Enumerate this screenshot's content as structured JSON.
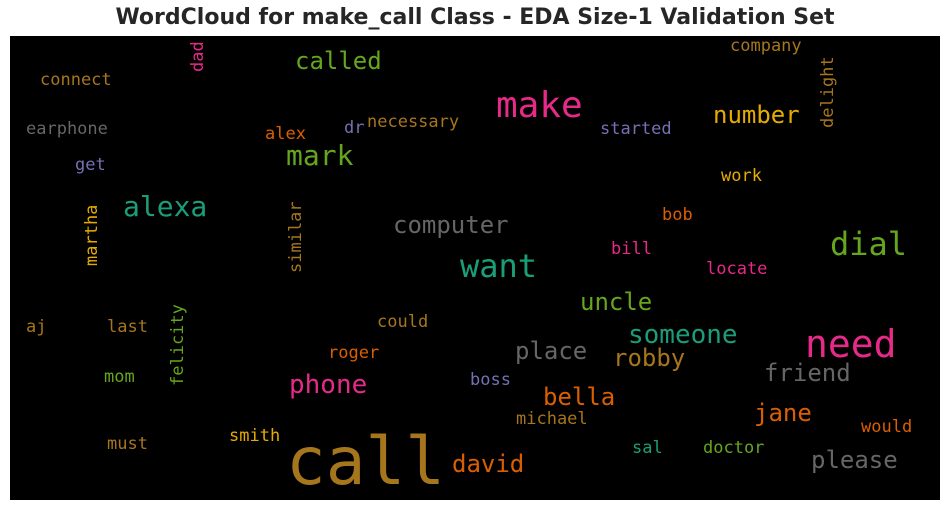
{
  "title": "WordCloud for make_call Class - EDA Size-1 Validation Set",
  "chart_data": {
    "type": "wordcloud",
    "title": "WordCloud for make_call Class - EDA Size-1 Validation Set",
    "background": "#000000",
    "colormap": "Dark2",
    "words": [
      {
        "text": "call",
        "color": "#a6761d"
      },
      {
        "text": "need",
        "color": "#e7298a"
      },
      {
        "text": "make",
        "color": "#e7298a"
      },
      {
        "text": "want",
        "color": "#1b9e77"
      },
      {
        "text": "dial",
        "color": "#66a61e"
      },
      {
        "text": "alexa",
        "color": "#1b9e77"
      },
      {
        "text": "mark",
        "color": "#66a61e"
      },
      {
        "text": "phone",
        "color": "#e7298a"
      },
      {
        "text": "someone",
        "color": "#1b9e77"
      },
      {
        "text": "computer",
        "color": "#666666"
      },
      {
        "text": "place",
        "color": "#666666"
      },
      {
        "text": "robby",
        "color": "#a6761d"
      },
      {
        "text": "friend",
        "color": "#666666"
      },
      {
        "text": "please",
        "color": "#666666"
      },
      {
        "text": "called",
        "color": "#66a61e"
      },
      {
        "text": "bella",
        "color": "#d95f02"
      },
      {
        "text": "jane",
        "color": "#d95f02"
      },
      {
        "text": "david",
        "color": "#d95f02"
      },
      {
        "text": "uncle",
        "color": "#66a61e"
      },
      {
        "text": "number",
        "color": "#e6ab02"
      },
      {
        "text": "company",
        "color": "#a6761d"
      },
      {
        "text": "delight",
        "color": "#a6761d"
      },
      {
        "text": "connect",
        "color": "#a6761d"
      },
      {
        "text": "dad",
        "color": "#e7298a"
      },
      {
        "text": "earphone",
        "color": "#666666"
      },
      {
        "text": "alex",
        "color": "#d95f02"
      },
      {
        "text": "dr",
        "color": "#7570b3"
      },
      {
        "text": "necessary",
        "color": "#a6761d"
      },
      {
        "text": "started",
        "color": "#7570b3"
      },
      {
        "text": "get",
        "color": "#7570b3"
      },
      {
        "text": "work",
        "color": "#e6ab02"
      },
      {
        "text": "martha",
        "color": "#e6ab02"
      },
      {
        "text": "similar",
        "color": "#a6761d"
      },
      {
        "text": "bob",
        "color": "#d95f02"
      },
      {
        "text": "bill",
        "color": "#e7298a"
      },
      {
        "text": "locate",
        "color": "#e7298a"
      },
      {
        "text": "felicity",
        "color": "#66a61e"
      },
      {
        "text": "aj",
        "color": "#a6761d"
      },
      {
        "text": "last",
        "color": "#a6761d"
      },
      {
        "text": "could",
        "color": "#a6761d"
      },
      {
        "text": "roger",
        "color": "#d95f02"
      },
      {
        "text": "mom",
        "color": "#66a61e"
      },
      {
        "text": "boss",
        "color": "#7570b3"
      },
      {
        "text": "michael",
        "color": "#a6761d"
      },
      {
        "text": "would",
        "color": "#d95f02"
      },
      {
        "text": "smith",
        "color": "#e6ab02"
      },
      {
        "text": "must",
        "color": "#a6761d"
      },
      {
        "text": "sal",
        "color": "#1b9e77"
      },
      {
        "text": "doctor",
        "color": "#66a61e"
      }
    ]
  }
}
